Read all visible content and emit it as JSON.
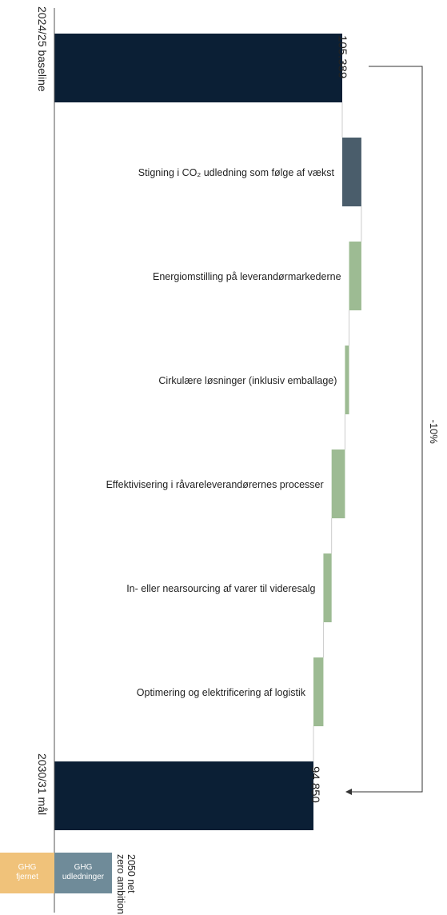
{
  "chart_data": {
    "type": "bar",
    "orientation": "horizontal-waterfall",
    "baseline": {
      "label": "2024/25 baseline",
      "value": 105389,
      "value_label": "105.389"
    },
    "target": {
      "label": "2030/31 mål",
      "value": 94850,
      "value_label": "94.850"
    },
    "steps": [
      {
        "label": "Stigning i CO₂ udledning som følge af vækst",
        "delta": 7000,
        "kind": "increase"
      },
      {
        "label": "Energiomstilling på leverandørmarkederne",
        "delta": -4500,
        "kind": "decrease"
      },
      {
        "label": "Cirkulære løsninger (inklusiv emballage)",
        "delta": -1500,
        "kind": "decrease"
      },
      {
        "label": "Effektivisering i råvareleverandørernes processer",
        "delta": -4900,
        "kind": "decrease"
      },
      {
        "label": "In- eller nearsourcing af varer til videresalg",
        "delta": -3000,
        "kind": "decrease"
      },
      {
        "label": "Optimering og elektrificering af logistik",
        "delta": -3639,
        "kind": "decrease"
      }
    ],
    "change_label": "-10%",
    "net_zero": {
      "label": "2050 net zero ambition",
      "removed_label": "GHG fjernet",
      "emissions_label": "GHG udledninger"
    },
    "colors": {
      "baseline": "#0b1f35",
      "increase": "#4a5d6b",
      "decrease": "#9dbb93",
      "removed": "#f0c27a",
      "emissions": "#6f8b99",
      "axis": "#555555",
      "connector": "#cccccc",
      "bracket": "#333333"
    }
  }
}
